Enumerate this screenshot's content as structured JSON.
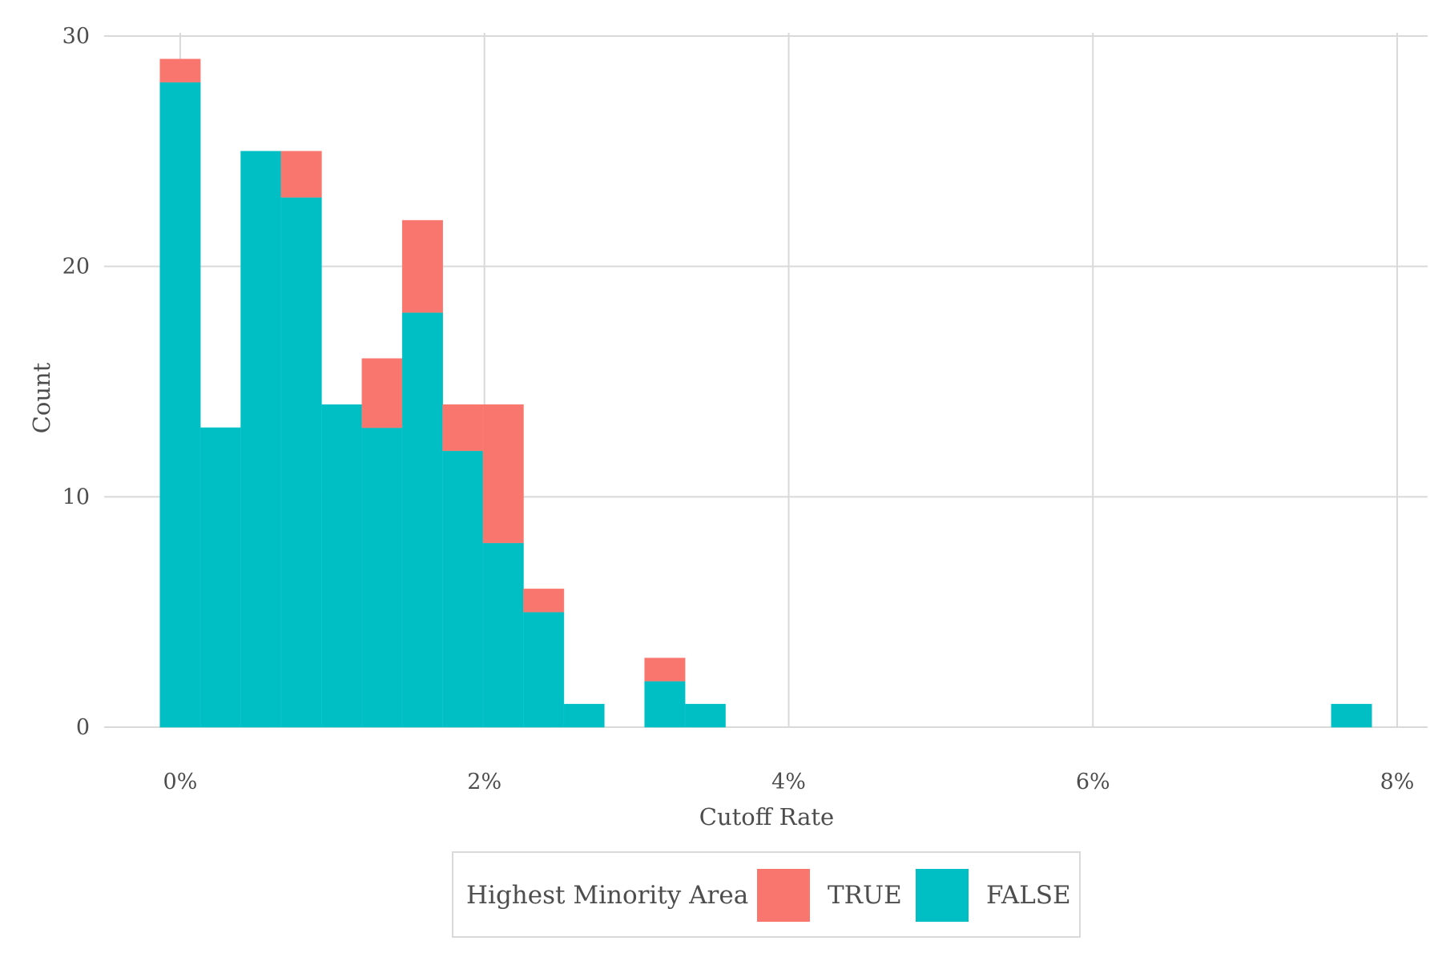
{
  "chart_data": {
    "type": "bar",
    "title": "",
    "xlabel": "Cutoff Rate",
    "ylabel": "Count",
    "xlim": [
      -0.5,
      8.2
    ],
    "ylim": [
      0,
      30
    ],
    "x_ticks": [
      0,
      2,
      4,
      6,
      8
    ],
    "x_tick_labels": [
      "0%",
      "2%",
      "4%",
      "6%",
      "8%"
    ],
    "y_ticks": [
      0,
      10,
      20,
      30
    ],
    "y_tick_labels": [
      "0",
      "10",
      "20",
      "30"
    ],
    "bin_width_pct": 0.2655,
    "bin_centers_pct": [
      0.0,
      0.2655,
      0.531,
      0.7965,
      1.062,
      1.3275,
      1.593,
      1.8585,
      2.124,
      2.3895,
      2.655,
      2.9205,
      3.186,
      3.4515,
      7.7
    ],
    "series": [
      {
        "name": "FALSE",
        "values": [
          28,
          13,
          25,
          23,
          14,
          13,
          18,
          12,
          8,
          5,
          1,
          0,
          2,
          1,
          1
        ]
      },
      {
        "name": "TRUE",
        "values": [
          1,
          0,
          0,
          2,
          0,
          3,
          4,
          2,
          6,
          1,
          0,
          0,
          1,
          0,
          0
        ]
      }
    ],
    "stacked": true,
    "grid": true,
    "legend": {
      "position": "bottom",
      "title": "Highest Minority Area",
      "entries": [
        "TRUE",
        "FALSE"
      ]
    },
    "colors": {
      "TRUE": "#F8766D",
      "FALSE": "#00BFC4"
    }
  }
}
